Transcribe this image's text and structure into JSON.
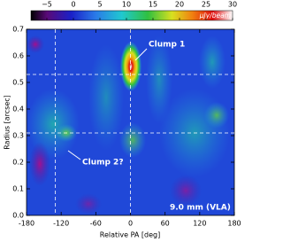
{
  "chart_data": {
    "type": "heatmap",
    "xlabel": "Relative PA [deg]",
    "ylabel": "Radius [arcsec]",
    "xlim": [
      -180,
      180
    ],
    "xticks": [
      -180,
      -120,
      -60,
      0,
      60,
      120,
      180
    ],
    "ylim": [
      0,
      0.7
    ],
    "yticks": [
      {
        "value": 0,
        "label": "0.0"
      },
      0.1,
      0.2,
      0.3,
      0.4,
      0.5,
      0.6,
      0.7
    ],
    "colorbar": {
      "label": "μJy/beam",
      "clim": [
        -8,
        30
      ],
      "ticks": [
        {
          "value": -5,
          "label": "−5"
        },
        0,
        5,
        10,
        15,
        20,
        25,
        30
      ]
    },
    "reference_lines": {
      "x": [
        -130,
        0
      ],
      "y": [
        0.53,
        0.31
      ]
    },
    "annotations": [
      "Clump 1",
      "Clump 2?",
      "9.0 mm (VLA)"
    ]
  }
}
